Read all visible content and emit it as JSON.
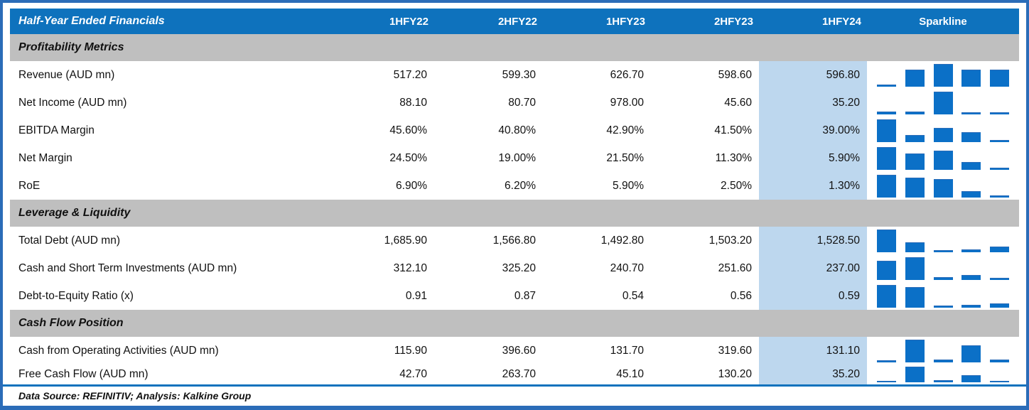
{
  "header": {
    "title": "Half-Year Ended Financials",
    "columns": [
      "1HFY22",
      "2HFY22",
      "1HFY23",
      "2HFY23",
      "1HFY24"
    ],
    "sparkline_label": "Sparkline"
  },
  "sections": [
    {
      "label": "Profitability Metrics",
      "rows": [
        {
          "label": "Revenue (AUD mn)",
          "values": [
            "517.20",
            "599.30",
            "626.70",
            "598.60",
            "596.80"
          ]
        },
        {
          "label": "Net Income (AUD mn)",
          "values": [
            "88.10",
            "80.70",
            "978.00",
            "45.60",
            "35.20"
          ]
        },
        {
          "label": "EBITDA Margin",
          "values": [
            "45.60%",
            "40.80%",
            "42.90%",
            "41.50%",
            "39.00%"
          ]
        },
        {
          "label": "Net Margin",
          "values": [
            "24.50%",
            "19.00%",
            "21.50%",
            "11.30%",
            "5.90%"
          ]
        },
        {
          "label": "RoE",
          "values": [
            "6.90%",
            "6.20%",
            "5.90%",
            "2.50%",
            "1.30%"
          ]
        }
      ]
    },
    {
      "label": "Leverage & Liquidity",
      "rows": [
        {
          "label": "Total Debt (AUD mn)",
          "values": [
            "1,685.90",
            "1,566.80",
            "1,492.80",
            "1,503.20",
            "1,528.50"
          ]
        },
        {
          "label": "Cash and Short Term Investments (AUD mn)",
          "values": [
            "312.10",
            "325.20",
            "240.70",
            "251.60",
            "237.00"
          ]
        },
        {
          "label": "Debt-to-Equity Ratio (x)",
          "values": [
            "0.91",
            "0.87",
            "0.54",
            "0.56",
            "0.59"
          ]
        }
      ]
    },
    {
      "label": "Cash Flow Position",
      "rows": [
        {
          "label": "Cash from Operating Activities (AUD mn)",
          "values": [
            "115.90",
            "396.60",
            "131.70",
            "319.60",
            "131.10"
          ]
        },
        {
          "label": "Free Cash Flow (AUD mn)",
          "values": [
            "42.70",
            "263.70",
            "45.10",
            "130.20",
            "35.20"
          ]
        }
      ]
    }
  ],
  "footer": {
    "text": "Data Source: REFINITIV; Analysis: Kalkine Group"
  },
  "colors": {
    "header_blue": "#0e72bd",
    "sparkline_blue": "#0b70c7",
    "current_column_highlight": "#bdd7ee",
    "section_gray": "#bfbfbf",
    "frame_border_blue": "#2b6cb8"
  },
  "chart_data": {
    "type": "table",
    "title": "Half-Year Ended Financials",
    "columns": [
      "1HFY22",
      "2HFY22",
      "1HFY23",
      "2HFY23",
      "1HFY24"
    ],
    "highlighted_column": "1HFY24",
    "sparkline": {
      "type": "bar",
      "scaling": "min-max per row",
      "position": "right column"
    },
    "sections": [
      {
        "name": "Profitability Metrics",
        "rows": [
          {
            "metric": "Revenue (AUD mn)",
            "unit": "AUD mn",
            "values": [
              517.2,
              599.3,
              626.7,
              598.6,
              596.8
            ]
          },
          {
            "metric": "Net Income (AUD mn)",
            "unit": "AUD mn",
            "values": [
              88.1,
              80.7,
              978.0,
              45.6,
              35.2
            ]
          },
          {
            "metric": "EBITDA Margin",
            "unit": "%",
            "values": [
              45.6,
              40.8,
              42.9,
              41.5,
              39.0
            ]
          },
          {
            "metric": "Net Margin",
            "unit": "%",
            "values": [
              24.5,
              19.0,
              21.5,
              11.3,
              5.9
            ]
          },
          {
            "metric": "RoE",
            "unit": "%",
            "values": [
              6.9,
              6.2,
              5.9,
              2.5,
              1.3
            ]
          }
        ]
      },
      {
        "name": "Leverage & Liquidity",
        "rows": [
          {
            "metric": "Total Debt (AUD mn)",
            "unit": "AUD mn",
            "values": [
              1685.9,
              1566.8,
              1492.8,
              1503.2,
              1528.5
            ]
          },
          {
            "metric": "Cash and Short Term Investments (AUD mn)",
            "unit": "AUD mn",
            "values": [
              312.1,
              325.2,
              240.7,
              251.6,
              237.0
            ]
          },
          {
            "metric": "Debt-to-Equity Ratio (x)",
            "unit": "x",
            "values": [
              0.91,
              0.87,
              0.54,
              0.56,
              0.59
            ]
          }
        ]
      },
      {
        "name": "Cash Flow Position",
        "rows": [
          {
            "metric": "Cash from Operating Activities (AUD mn)",
            "unit": "AUD mn",
            "values": [
              115.9,
              396.6,
              131.7,
              319.6,
              131.1
            ]
          },
          {
            "metric": "Free Cash Flow (AUD mn)",
            "unit": "AUD mn",
            "values": [
              42.7,
              263.7,
              45.1,
              130.2,
              35.2
            ]
          }
        ]
      }
    ],
    "source_note": "Data Source: REFINITIV; Analysis: Kalkine Group"
  }
}
